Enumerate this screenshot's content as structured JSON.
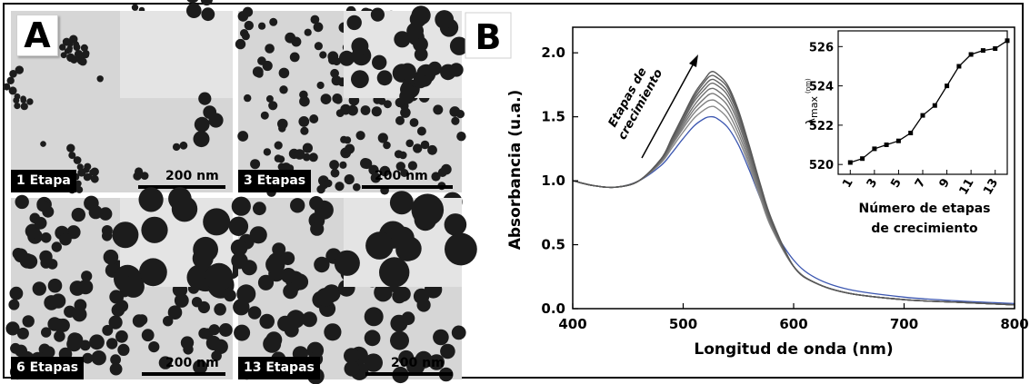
{
  "panel_a": {
    "letter": "A",
    "tiles": [
      {
        "label": "1 Etapa",
        "scale": "200 nm"
      },
      {
        "label": "3 Etapas",
        "scale": "200 nm"
      },
      {
        "label": "6 Etapas",
        "scale": "200 nm"
      },
      {
        "label": "13 Etapas",
        "scale": "200 nm"
      }
    ]
  },
  "panel_b": {
    "letter": "B",
    "arrow_text_line1": "Etapas de",
    "arrow_text_line2": "crecimiento"
  },
  "chart_data": [
    {
      "type": "line",
      "xlabel": "Longitud de onda (nm)",
      "ylabel": "Absorbancia (u.a.)",
      "xlim": [
        400,
        800
      ],
      "ylim": [
        0,
        2.2
      ],
      "xticks": [
        "400",
        "500",
        "600",
        "700",
        "800"
      ],
      "yticks": [
        "0.0",
        "0.5",
        "1.0",
        "1.5",
        "2.0"
      ],
      "x": [
        400,
        420,
        440,
        460,
        480,
        490,
        500,
        510,
        520,
        525,
        530,
        540,
        550,
        560,
        570,
        580,
        600,
        620,
        650,
        700,
        750,
        800
      ],
      "series": [
        {
          "color": "#3b56b0",
          "values": [
            1.0,
            0.96,
            0.95,
            1.0,
            1.12,
            1.22,
            1.33,
            1.43,
            1.49,
            1.5,
            1.49,
            1.42,
            1.28,
            1.08,
            0.86,
            0.65,
            0.38,
            0.24,
            0.15,
            0.09,
            0.06,
            0.04
          ]
        },
        {
          "color": "#8a8a8a",
          "values": [
            1.0,
            0.96,
            0.95,
            1.0,
            1.14,
            1.26,
            1.38,
            1.49,
            1.56,
            1.58,
            1.57,
            1.49,
            1.33,
            1.11,
            0.86,
            0.63,
            0.33,
            0.2,
            0.12,
            0.07,
            0.05,
            0.03
          ]
        },
        {
          "color": "#808080",
          "values": [
            1.0,
            0.96,
            0.95,
            1.0,
            1.15,
            1.28,
            1.41,
            1.53,
            1.61,
            1.63,
            1.62,
            1.54,
            1.37,
            1.14,
            0.88,
            0.64,
            0.33,
            0.2,
            0.12,
            0.07,
            0.05,
            0.03
          ]
        },
        {
          "color": "#787878",
          "values": [
            1.0,
            0.96,
            0.95,
            1.0,
            1.15,
            1.29,
            1.43,
            1.56,
            1.65,
            1.68,
            1.67,
            1.59,
            1.41,
            1.17,
            0.9,
            0.65,
            0.33,
            0.2,
            0.12,
            0.07,
            0.05,
            0.03
          ]
        },
        {
          "color": "#707070",
          "values": [
            1.0,
            0.96,
            0.95,
            1.0,
            1.16,
            1.3,
            1.45,
            1.59,
            1.69,
            1.72,
            1.71,
            1.63,
            1.45,
            1.2,
            0.92,
            0.66,
            0.33,
            0.2,
            0.12,
            0.07,
            0.05,
            0.03
          ]
        },
        {
          "color": "#6a6a6a",
          "values": [
            1.0,
            0.96,
            0.95,
            1.0,
            1.16,
            1.31,
            1.47,
            1.62,
            1.72,
            1.76,
            1.75,
            1.67,
            1.48,
            1.22,
            0.94,
            0.67,
            0.33,
            0.2,
            0.12,
            0.07,
            0.05,
            0.03
          ]
        },
        {
          "color": "#646464",
          "values": [
            1.0,
            0.96,
            0.95,
            1.0,
            1.17,
            1.32,
            1.48,
            1.64,
            1.75,
            1.79,
            1.78,
            1.7,
            1.51,
            1.24,
            0.95,
            0.68,
            0.33,
            0.2,
            0.12,
            0.07,
            0.05,
            0.03
          ]
        },
        {
          "color": "#5e5e5e",
          "values": [
            1.0,
            0.96,
            0.95,
            1.0,
            1.17,
            1.33,
            1.5,
            1.66,
            1.78,
            1.82,
            1.81,
            1.73,
            1.53,
            1.26,
            0.96,
            0.69,
            0.33,
            0.2,
            0.12,
            0.07,
            0.05,
            0.03
          ]
        },
        {
          "color": "#585858",
          "values": [
            1.0,
            0.96,
            0.95,
            1.0,
            1.17,
            1.34,
            1.51,
            1.68,
            1.8,
            1.85,
            1.84,
            1.75,
            1.55,
            1.27,
            0.97,
            0.7,
            0.33,
            0.2,
            0.12,
            0.07,
            0.05,
            0.03
          ]
        }
      ]
    },
    {
      "type": "line",
      "xlabel_line1": "Número de etapas",
      "xlabel_line2": "de crecimiento",
      "ylabel_main": "λ",
      "ylabel_sub": "max",
      "ylabel_unit": "(nm)",
      "xlim": [
        0,
        14
      ],
      "ylim": [
        519.5,
        526.8
      ],
      "xticks": [
        "1",
        "3",
        "5",
        "7",
        "9",
        "11",
        "13"
      ],
      "yticks": [
        "520",
        "522",
        "524",
        "526"
      ],
      "x": [
        1,
        2,
        3,
        4,
        5,
        6,
        7,
        8,
        9,
        10,
        11,
        12,
        13,
        14
      ],
      "values": [
        520.1,
        520.3,
        520.8,
        521.0,
        521.2,
        521.6,
        522.5,
        523.0,
        524.0,
        525.0,
        525.6,
        525.8,
        525.9,
        526.3
      ]
    }
  ]
}
